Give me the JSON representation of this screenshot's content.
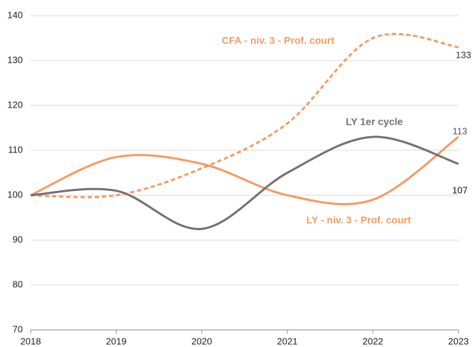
{
  "chart_data": {
    "type": "line",
    "categories": [
      "2018",
      "2019",
      "2020",
      "2021",
      "2022",
      "2023"
    ],
    "series": [
      {
        "name": "CFA - niv. 3 - Prof. court",
        "color": "#f79a62",
        "style": "dashed",
        "values": [
          100,
          100,
          106,
          116,
          135,
          133
        ]
      },
      {
        "name": "LY - niv. 3 -  Prof. court",
        "color": "#f79a62",
        "style": "solid",
        "values": [
          100,
          108.5,
          107,
          100,
          99,
          113
        ]
      },
      {
        "name": "LY  1er cycle",
        "color": "#767171",
        "style": "solid",
        "values": [
          100,
          101,
          92.5,
          105,
          113,
          107
        ]
      }
    ],
    "ylim": [
      70,
      140
    ],
    "yticks": [
      70,
      80,
      90,
      100,
      110,
      120,
      130,
      140
    ],
    "grid": true,
    "smooth": true
  }
}
